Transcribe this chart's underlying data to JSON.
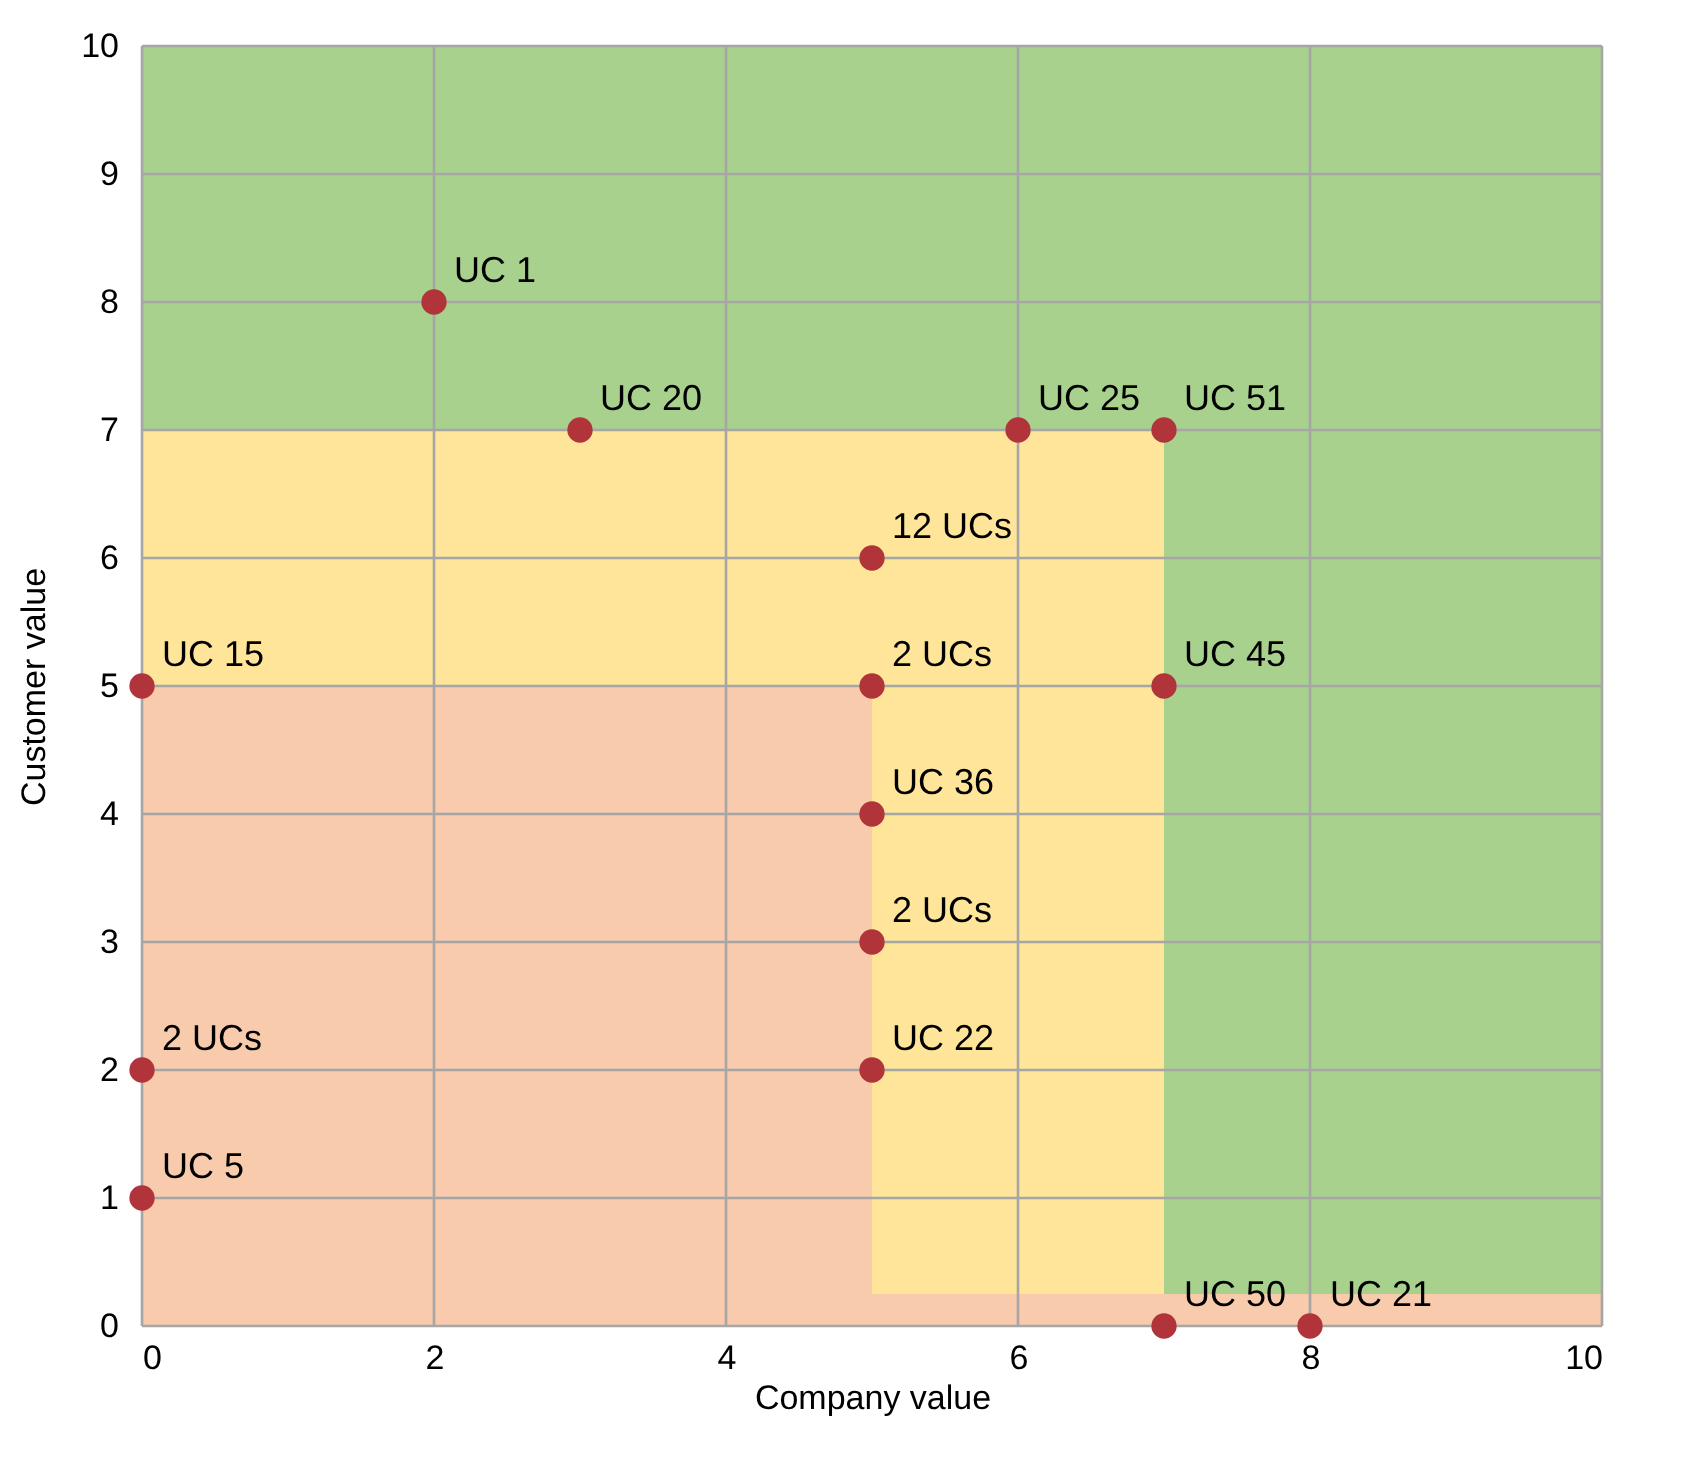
{
  "chart_data": {
    "type": "scatter",
    "xlabel": "Company value",
    "ylabel": "Customer value",
    "x": [
      2,
      3,
      6,
      7,
      5,
      0,
      5,
      7,
      5,
      5,
      5,
      0,
      0,
      7,
      8
    ],
    "series": [
      {
        "color": "#b0343a",
        "values": [
          8,
          7,
          7,
          7,
          6,
          5,
          5,
          5,
          4,
          3,
          2,
          2,
          1,
          0,
          0
        ]
      }
    ],
    "annotations": [
      {
        "text": "UC 1",
        "x": 2,
        "y": 8
      },
      {
        "text": "UC 20",
        "x": 3,
        "y": 7
      },
      {
        "text": "UC 25",
        "x": 6,
        "y": 7
      },
      {
        "text": "UC 51",
        "x": 7,
        "y": 7
      },
      {
        "text": "12 UCs",
        "x": 5,
        "y": 6
      },
      {
        "text": "UC 15",
        "x": 0,
        "y": 5
      },
      {
        "text": "2 UCs",
        "x": 5,
        "y": 5
      },
      {
        "text": "UC 45",
        "x": 7,
        "y": 5
      },
      {
        "text": "UC 36",
        "x": 5,
        "y": 4
      },
      {
        "text": "2 UCs",
        "x": 5,
        "y": 3
      },
      {
        "text": "UC 22",
        "x": 5,
        "y": 2
      },
      {
        "text": "2 UCs",
        "x": 0,
        "y": 2
      },
      {
        "text": "UC 5",
        "x": 0,
        "y": 1
      },
      {
        "text": "UC 50",
        "x": 7,
        "y": 0
      },
      {
        "text": "UC 21",
        "x": 8,
        "y": 0
      }
    ],
    "xlim": [
      0,
      10
    ],
    "ylim": [
      0,
      10
    ],
    "xticks": [
      0,
      2,
      4,
      6,
      8,
      10
    ],
    "yticks": [
      0,
      1,
      2,
      3,
      4,
      5,
      6,
      7,
      8,
      9,
      10
    ],
    "grid": true,
    "marker": "circle",
    "bands": [
      {
        "axis": "y",
        "from": 5,
        "to": 7,
        "color": "#fee599"
      },
      {
        "axis": "y",
        "from": 0,
        "to": 5,
        "color": "#f7cbac"
      },
      {
        "axis": "x",
        "from": 5,
        "to": 7,
        "color": "#fee599"
      },
      {
        "axis": "x",
        "from": 7,
        "to": 10,
        "color": "#a9d18e"
      },
      {
        "axis": "y",
        "from": 7,
        "to": 10,
        "color": "#a9d18e"
      },
      {
        "axis": "y",
        "from": 0,
        "to": 0.25,
        "color": "#f7cbac"
      }
    ]
  }
}
